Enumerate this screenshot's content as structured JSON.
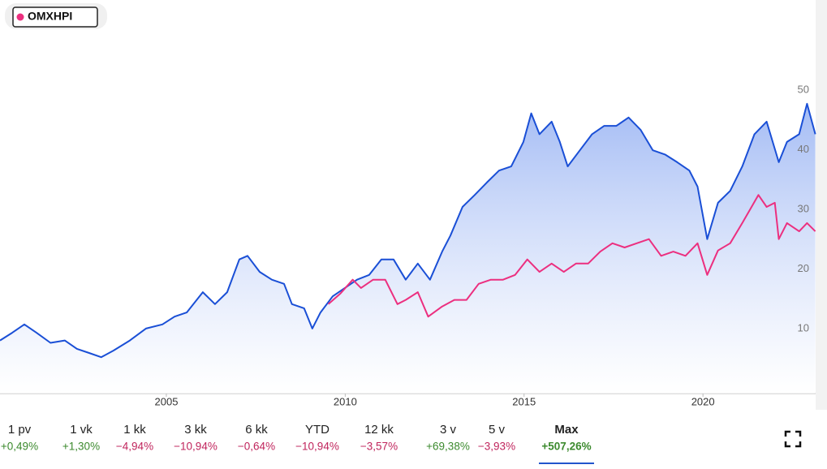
{
  "chart_data": {
    "type": "line",
    "xlim": [
      2000.35,
      2023.15
    ],
    "xticks": [
      2005,
      2010,
      2015,
      2020
    ],
    "ylim": [
      -0.9,
      50
    ],
    "yticks": [
      10,
      20,
      30,
      40,
      50
    ],
    "area_fill": true,
    "series": [
      {
        "color": "#1a4fd6",
        "x": [
          2000.35,
          2000.69,
          2001.03,
          2001.37,
          2001.76,
          2002.16,
          2002.5,
          2002.84,
          2003.18,
          2003.52,
          2003.98,
          2004.43,
          2004.89,
          2005.23,
          2005.57,
          2006.02,
          2006.36,
          2006.7,
          2007.04,
          2007.27,
          2007.61,
          2007.95,
          2008.29,
          2008.51,
          2008.85,
          2009.08,
          2009.31,
          2009.65,
          2009.99,
          2010.33,
          2010.67,
          2011.01,
          2011.35,
          2011.69,
          2012.03,
          2012.37,
          2012.71,
          2012.94,
          2013.28,
          2013.62,
          2013.96,
          2014.3,
          2014.64,
          2014.98,
          2015.2,
          2015.43,
          2015.77,
          2016.0,
          2016.22,
          2016.56,
          2016.9,
          2017.24,
          2017.58,
          2017.92,
          2018.26,
          2018.6,
          2018.94,
          2019.28,
          2019.62,
          2019.85,
          2020.12,
          2020.42,
          2020.76,
          2021.1,
          2021.44,
          2021.78,
          2022.12,
          2022.35,
          2022.69,
          2022.91,
          2023.14
        ],
        "values": [
          8.0,
          9.3,
          10.7,
          9.3,
          7.6,
          8.0,
          6.6,
          5.9,
          5.2,
          6.3,
          8.0,
          10.0,
          10.7,
          12.0,
          12.7,
          16.1,
          14.1,
          16.1,
          21.6,
          22.2,
          19.5,
          18.2,
          17.5,
          14.1,
          13.4,
          10.0,
          12.7,
          15.4,
          16.8,
          18.2,
          19.0,
          21.6,
          21.6,
          18.2,
          20.9,
          18.2,
          22.9,
          25.6,
          30.4,
          32.4,
          34.5,
          36.5,
          37.2,
          41.3,
          46.1,
          42.6,
          44.7,
          41.3,
          37.2,
          39.9,
          42.6,
          44.0,
          44.0,
          45.4,
          43.3,
          39.9,
          39.2,
          37.9,
          36.5,
          33.8,
          25.0,
          31.1,
          33.1,
          37.2,
          42.6,
          44.7,
          37.9,
          41.3,
          42.6,
          47.7,
          42.6
        ]
      },
      {
        "name": "OMXHPI",
        "color": "#ec2f7f",
        "x": [
          2009.53,
          2009.87,
          2010.21,
          2010.44,
          2010.78,
          2011.12,
          2011.46,
          2011.69,
          2012.03,
          2012.32,
          2012.71,
          2013.05,
          2013.39,
          2013.73,
          2014.07,
          2014.41,
          2014.75,
          2015.09,
          2015.43,
          2015.77,
          2016.11,
          2016.45,
          2016.79,
          2017.13,
          2017.47,
          2017.81,
          2018.15,
          2018.49,
          2018.83,
          2019.17,
          2019.51,
          2019.85,
          2020.12,
          2020.42,
          2020.76,
          2021.1,
          2021.55,
          2021.78,
          2022.01,
          2022.12,
          2022.35,
          2022.69,
          2022.91,
          2023.14
        ],
        "values": [
          14.1,
          15.9,
          18.2,
          16.8,
          18.2,
          18.2,
          14.1,
          14.8,
          16.1,
          12.0,
          13.7,
          14.8,
          14.8,
          17.5,
          18.2,
          18.2,
          19.0,
          21.6,
          19.5,
          20.9,
          19.5,
          20.9,
          20.9,
          22.9,
          24.3,
          23.6,
          24.3,
          25.0,
          22.2,
          22.9,
          22.2,
          24.3,
          19.0,
          23.1,
          24.3,
          27.7,
          32.4,
          30.4,
          31.1,
          25.0,
          27.7,
          26.3,
          27.7,
          26.3
        ]
      }
    ]
  },
  "periods": [
    {
      "label": "1 pv",
      "change": "+0,49%"
    },
    {
      "label": "1 vk",
      "change": "+1,30%"
    },
    {
      "label": "1 kk",
      "change": "−4,94%"
    },
    {
      "label": "3 kk",
      "change": "−10,94%"
    },
    {
      "label": "6 kk",
      "change": "−0,64%"
    },
    {
      "label": "YTD",
      "change": "−10,94%"
    },
    {
      "label": "12 kk",
      "change": "−3,57%"
    },
    {
      "label": "3 v",
      "change": "+69,38%"
    },
    {
      "label": "5 v",
      "change": "−3,93%"
    },
    {
      "label": "Max",
      "change": "+507,26%"
    }
  ],
  "selected_period": 9
}
